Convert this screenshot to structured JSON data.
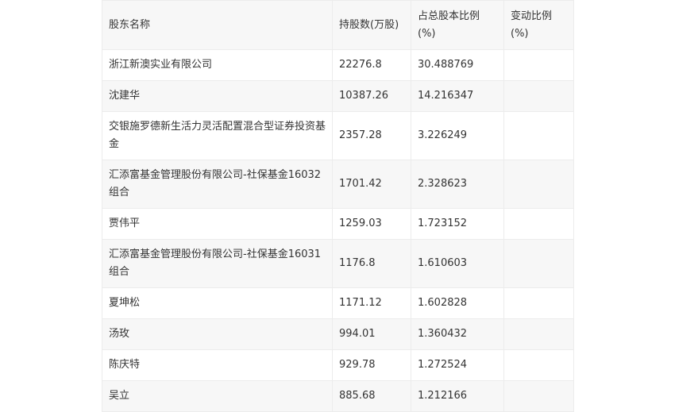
{
  "table": {
    "headers": [
      "股东名称",
      "持股数(万股)",
      "占总股本比例(%)",
      "变动比例(%)"
    ],
    "rows": [
      {
        "name": "浙江新澳实业有限公司",
        "shares": "22276.8",
        "ratio": "30.488769",
        "change": ""
      },
      {
        "name": "沈建华",
        "shares": "10387.26",
        "ratio": "14.216347",
        "change": ""
      },
      {
        "name": "交银施罗德新生活力灵活配置混合型证券投资基金",
        "shares": "2357.28",
        "ratio": "3.226249",
        "change": ""
      },
      {
        "name": "汇添富基金管理股份有限公司-社保基金16032组合",
        "shares": "1701.42",
        "ratio": "2.328623",
        "change": ""
      },
      {
        "name": "贾伟平",
        "shares": "1259.03",
        "ratio": "1.723152",
        "change": ""
      },
      {
        "name": "汇添富基金管理股份有限公司-社保基金16031组合",
        "shares": "1176.8",
        "ratio": "1.610603",
        "change": ""
      },
      {
        "name": "夏坤松",
        "shares": "1171.12",
        "ratio": "1.602828",
        "change": ""
      },
      {
        "name": "汤玫",
        "shares": "994.01",
        "ratio": "1.360432",
        "change": ""
      },
      {
        "name": "陈庆特",
        "shares": "929.78",
        "ratio": "1.272524",
        "change": ""
      },
      {
        "name": "吴立",
        "shares": "885.68",
        "ratio": "1.212166",
        "change": ""
      }
    ]
  }
}
